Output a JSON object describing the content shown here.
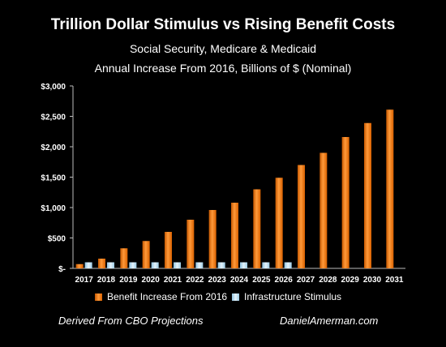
{
  "colors": {
    "benefit": "#ef7a14",
    "stimulus": "#bfe0f2",
    "background": "#000000",
    "text": "#ffffff"
  },
  "chart_data": {
    "type": "bar",
    "title": "Trillion Dollar Stimulus vs Rising Benefit Costs",
    "subtitle1": "Social Security, Medicare & Medicaid",
    "subtitle2": "Annual Increase From 2016, Billions of $ (Nominal)",
    "categories": [
      "2017",
      "2018",
      "2019",
      "2020",
      "2021",
      "2022",
      "2023",
      "2024",
      "2025",
      "2026",
      "2027",
      "2028",
      "2029",
      "2030",
      "2031"
    ],
    "series": [
      {
        "name": "Benefit Increase From 2016",
        "values": [
          70,
          160,
          330,
          450,
          600,
          800,
          960,
          1080,
          1300,
          1490,
          1700,
          1900,
          2160,
          2390,
          2610
        ]
      },
      {
        "name": "Infrastructure Stimulus",
        "values": [
          100,
          100,
          100,
          100,
          100,
          100,
          100,
          100,
          100,
          100,
          null,
          null,
          null,
          null,
          null
        ]
      }
    ],
    "ylim": [
      0,
      3000
    ],
    "yticks": [
      0,
      500,
      1000,
      1500,
      2000,
      2500,
      3000
    ],
    "ytick_labels": [
      "$-",
      "$500",
      "$1,000",
      "$1,500",
      "$2,000",
      "$2,500",
      "$3,000"
    ],
    "grid": false,
    "legend_position": "bottom"
  },
  "footer": {
    "left": "Derived From CBO Projections",
    "right": "DanielAmerman.com"
  }
}
